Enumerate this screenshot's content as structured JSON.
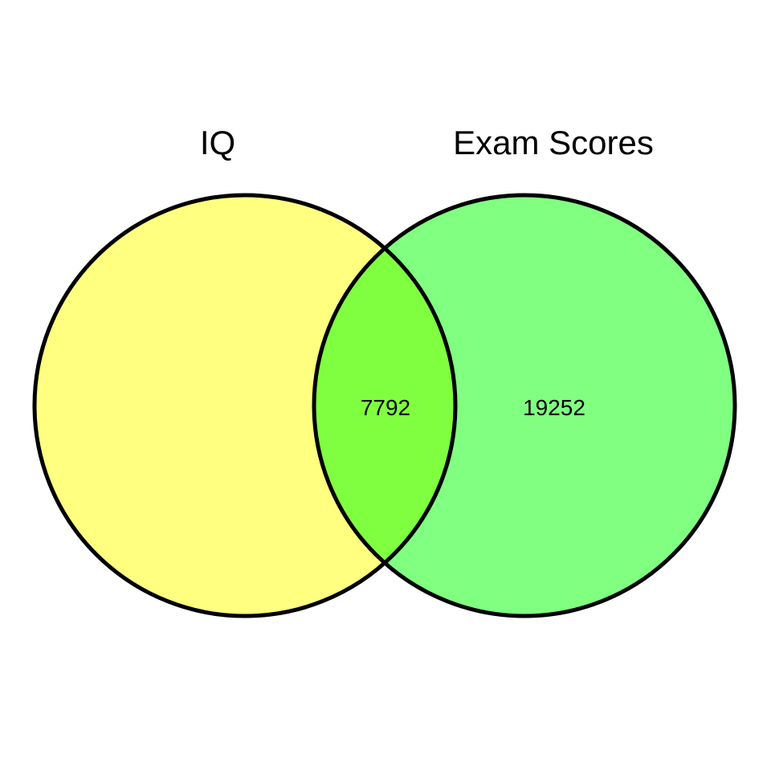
{
  "venn": {
    "sets": [
      {
        "name": "IQ",
        "fill_color": "#ffff80",
        "only_count": null
      },
      {
        "name": "Exam Scores",
        "fill_color": "#80ff80",
        "only_count": "19252"
      }
    ],
    "intersection": {
      "count": "7792",
      "fill_color": "#80ff40"
    },
    "outline_color": "#000000"
  }
}
